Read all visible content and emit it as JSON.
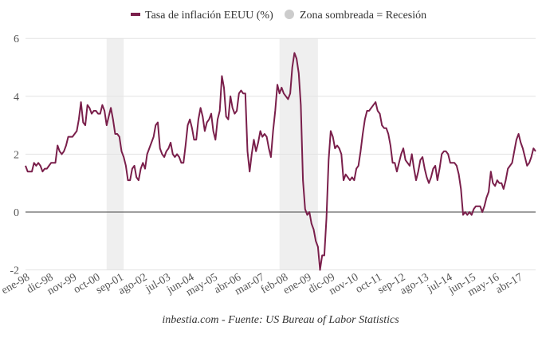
{
  "chart_data": {
    "type": "line",
    "title": "",
    "xlabel": "",
    "ylabel": "",
    "ylim": [
      -2,
      6
    ],
    "yticks": [
      -2,
      0,
      2,
      4,
      6
    ],
    "grid": true,
    "legend_position": "top-center",
    "legend": [
      "Tasa de inflación EEUU (%)",
      "Zona sombreada = Recesión"
    ],
    "start_month": "ene-98",
    "frequency": "monthly",
    "xtick_labels": [
      "ene-98",
      "dic-98",
      "nov-99",
      "oct-00",
      "sep-01",
      "ago-02",
      "jul-03",
      "jun-04",
      "may-05",
      "abr-06",
      "mar-07",
      "feb-08",
      "ene-09",
      "dic-09",
      "nov-10",
      "oct-11",
      "sep-12",
      "ago-13",
      "jul-14",
      "jun-15",
      "may-16",
      "abr-17"
    ],
    "xtick_every_months": 11,
    "recessions": [
      {
        "start_index": 38,
        "end_index": 46
      },
      {
        "start_index": 119,
        "end_index": 137
      }
    ],
    "series": [
      {
        "name": "Tasa de inflación EEUU (%)",
        "color": "#7a1f4b",
        "values": [
          1.6,
          1.4,
          1.4,
          1.4,
          1.7,
          1.6,
          1.7,
          1.6,
          1.4,
          1.5,
          1.5,
          1.6,
          1.7,
          1.7,
          1.7,
          2.3,
          2.1,
          2.0,
          2.1,
          2.3,
          2.6,
          2.6,
          2.6,
          2.7,
          2.8,
          3.2,
          3.8,
          3.1,
          3.0,
          3.7,
          3.6,
          3.4,
          3.5,
          3.5,
          3.4,
          3.4,
          3.7,
          3.5,
          3.0,
          3.3,
          3.6,
          3.2,
          2.7,
          2.7,
          2.6,
          2.1,
          1.9,
          1.6,
          1.1,
          1.1,
          1.5,
          1.6,
          1.2,
          1.1,
          1.5,
          1.7,
          1.5,
          2.0,
          2.2,
          2.4,
          2.6,
          3.0,
          3.1,
          2.2,
          2.0,
          1.9,
          2.1,
          2.2,
          2.4,
          2.0,
          1.9,
          2.0,
          1.9,
          1.7,
          1.7,
          2.3,
          3.0,
          3.2,
          2.9,
          2.5,
          2.5,
          3.2,
          3.6,
          3.3,
          2.8,
          3.1,
          3.2,
          3.4,
          2.8,
          2.5,
          3.2,
          3.5,
          4.7,
          4.3,
          3.3,
          3.2,
          4.0,
          3.6,
          3.4,
          3.5,
          4.1,
          4.2,
          4.1,
          4.1,
          2.1,
          1.4,
          2.0,
          2.5,
          2.1,
          2.4,
          2.8,
          2.6,
          2.7,
          2.6,
          2.2,
          1.9,
          2.8,
          3.5,
          4.4,
          4.1,
          4.3,
          4.1,
          4.0,
          3.9,
          4.1,
          5.0,
          5.5,
          5.3,
          4.8,
          3.7,
          1.1,
          0.1,
          -0.1,
          0.0,
          -0.4,
          -0.6,
          -1.0,
          -1.2,
          -2.0,
          -1.5,
          -1.5,
          -0.2,
          1.8,
          2.8,
          2.6,
          2.2,
          2.3,
          2.2,
          2.0,
          1.1,
          1.3,
          1.2,
          1.1,
          1.2,
          1.1,
          1.5,
          1.6,
          2.1,
          2.7,
          3.2,
          3.5,
          3.5,
          3.6,
          3.7,
          3.8,
          3.5,
          3.4,
          3.0,
          2.9,
          2.9,
          2.7,
          2.3,
          1.7,
          1.7,
          1.4,
          1.7,
          2.0,
          2.2,
          1.8,
          1.7,
          1.6,
          2.0,
          1.5,
          1.1,
          1.4,
          1.8,
          1.9,
          1.5,
          1.2,
          1.0,
          1.2,
          1.5,
          1.6,
          1.1,
          1.5,
          2.0,
          2.1,
          2.1,
          2.0,
          1.7,
          1.7,
          1.7,
          1.6,
          1.3,
          0.8,
          -0.1,
          0.0,
          -0.1,
          0.0,
          -0.1,
          0.1,
          0.2,
          0.2,
          0.2,
          0.0,
          0.2,
          0.5,
          0.7,
          1.4,
          1.0,
          0.9,
          1.1,
          1.0,
          1.0,
          0.8,
          1.1,
          1.5,
          1.6,
          1.7,
          2.1,
          2.5,
          2.7,
          2.4,
          2.2,
          1.9,
          1.6,
          1.7,
          1.9,
          2.2,
          2.1
        ]
      }
    ]
  },
  "footer": {
    "source": "inbestia.com - Fuente: US Bureau of Labor Statistics"
  },
  "colors": {
    "line": "#7a1f4b",
    "recession": "#efefef",
    "legend_recession": "#cccccc",
    "grid": "#e3e3e3",
    "zero_line": "#666666"
  }
}
